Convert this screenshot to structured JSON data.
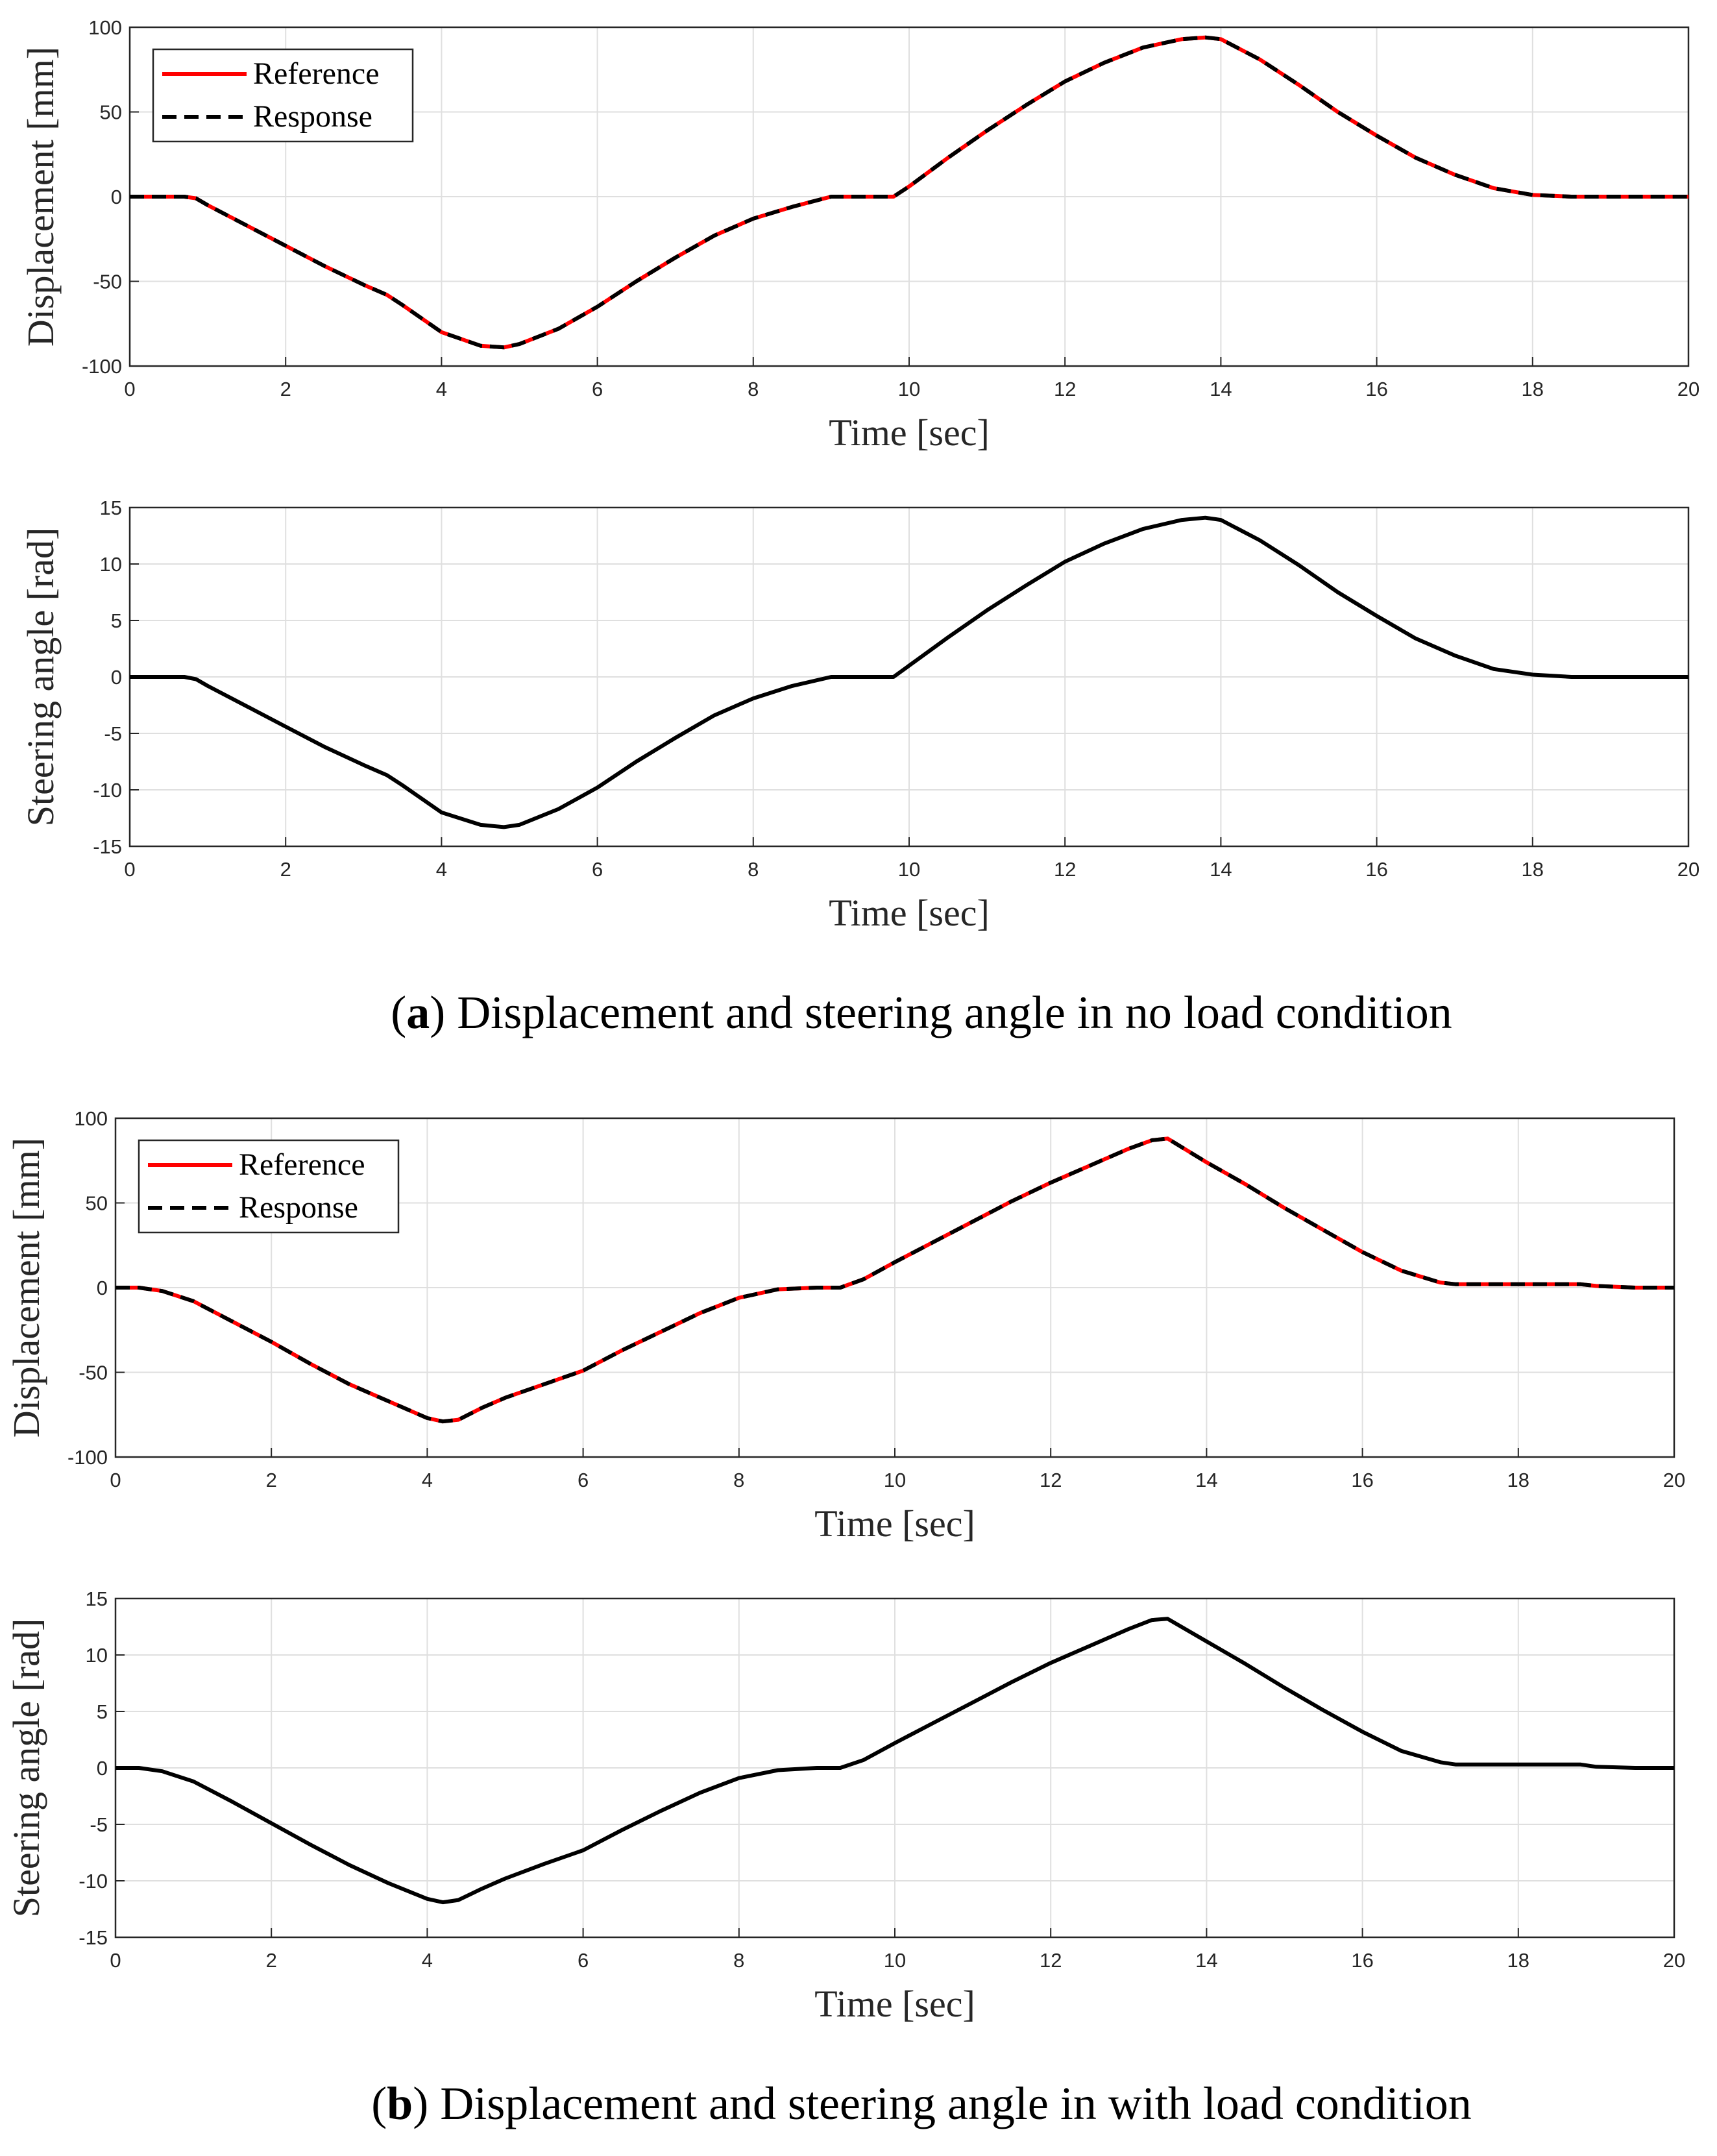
{
  "chart_data": [
    {
      "type": "line",
      "panel": "a",
      "ylabel": "Displacement [mm]",
      "xlabel": "Time [sec]",
      "xlim": [
        0,
        20
      ],
      "ylim": [
        -100,
        100
      ],
      "xticks": [
        0,
        2,
        4,
        6,
        8,
        10,
        12,
        14,
        16,
        18,
        20
      ],
      "yticks": [
        -100,
        -50,
        0,
        50,
        100
      ],
      "grid": true,
      "legend": "top-left",
      "series": [
        {
          "name": "Reference",
          "color": "#ff0000",
          "style": "solid",
          "x": [
            0,
            0.7,
            0.85,
            1,
            1.5,
            2,
            2.5,
            3,
            3.3,
            3.5,
            4,
            4.5,
            4.8,
            5,
            5.5,
            6,
            6.5,
            7,
            7.5,
            8,
            8.5,
            9,
            9.1,
            9.5,
            9.8,
            10,
            10.5,
            11,
            11.5,
            12,
            12.5,
            13,
            13.5,
            13.8,
            14,
            14.5,
            15,
            15.5,
            16,
            16.5,
            17,
            17.5,
            18,
            18.5,
            19,
            19.5,
            20
          ],
          "y": [
            0,
            0,
            -1,
            -5,
            -17,
            -29,
            -41,
            -52,
            -58,
            -64,
            -80,
            -88,
            -89,
            -87,
            -78,
            -65,
            -50,
            -36,
            -23,
            -13,
            -6,
            0,
            0,
            0,
            0,
            6,
            23,
            39,
            54,
            68,
            79,
            88,
            93,
            94,
            93,
            81,
            66,
            50,
            36,
            23,
            13,
            5,
            1,
            0,
            0,
            0,
            0
          ]
        },
        {
          "name": "Response",
          "color": "#000000",
          "style": "dashed",
          "x": [
            0,
            0.7,
            0.85,
            1,
            1.5,
            2,
            2.5,
            3,
            3.3,
            3.5,
            4,
            4.5,
            4.8,
            5,
            5.5,
            6,
            6.5,
            7,
            7.5,
            8,
            8.5,
            9,
            9.1,
            9.5,
            9.8,
            10,
            10.5,
            11,
            11.5,
            12,
            12.5,
            13,
            13.5,
            13.8,
            14,
            14.5,
            15,
            15.5,
            16,
            16.5,
            17,
            17.5,
            18,
            18.5,
            19,
            19.5,
            20
          ],
          "y": [
            0,
            0,
            -1,
            -5,
            -17,
            -29,
            -41,
            -52,
            -58,
            -64,
            -80,
            -88,
            -89,
            -87,
            -78,
            -65,
            -50,
            -36,
            -23,
            -13,
            -6,
            0,
            0,
            0,
            0,
            6,
            23,
            39,
            54,
            68,
            79,
            88,
            93,
            94,
            93,
            81,
            66,
            50,
            36,
            23,
            13,
            5,
            1,
            0,
            0,
            0,
            0
          ]
        }
      ]
    },
    {
      "type": "line",
      "panel": "a",
      "ylabel": "Steering angle [rad]",
      "xlabel": "Time [sec]",
      "xlim": [
        0,
        20
      ],
      "ylim": [
        -15,
        15
      ],
      "xticks": [
        0,
        2,
        4,
        6,
        8,
        10,
        12,
        14,
        16,
        18,
        20
      ],
      "yticks": [
        -15,
        -10,
        -5,
        0,
        5,
        10,
        15
      ],
      "grid": true,
      "series": [
        {
          "name": "Steering angle",
          "color": "#000000",
          "style": "solid",
          "x": [
            0,
            0.7,
            0.85,
            1,
            1.5,
            2,
            2.5,
            3,
            3.3,
            3.5,
            4,
            4.5,
            4.8,
            5,
            5.5,
            6,
            6.5,
            7,
            7.5,
            8,
            8.5,
            9,
            9.1,
            9.5,
            9.8,
            10,
            10.5,
            11,
            11.5,
            12,
            12.5,
            13,
            13.5,
            13.8,
            14,
            14.5,
            15,
            15.5,
            16,
            16.5,
            17,
            17.5,
            18,
            18.5,
            19,
            19.5,
            20
          ],
          "y": [
            0,
            0,
            -0.2,
            -0.8,
            -2.6,
            -4.4,
            -6.2,
            -7.8,
            -8.7,
            -9.6,
            -12,
            -13.1,
            -13.3,
            -13.1,
            -11.7,
            -9.8,
            -7.5,
            -5.4,
            -3.4,
            -1.9,
            -0.8,
            0,
            0,
            0,
            0,
            1,
            3.5,
            5.9,
            8.1,
            10.2,
            11.8,
            13.1,
            13.9,
            14.1,
            13.9,
            12.1,
            9.9,
            7.5,
            5.4,
            3.4,
            1.9,
            0.7,
            0.2,
            0,
            0,
            0,
            0
          ]
        }
      ]
    },
    {
      "type": "line",
      "panel": "b",
      "ylabel": "Displacement [mm]",
      "xlabel": "Time [sec]",
      "xlim": [
        0,
        20
      ],
      "ylim": [
        -100,
        100
      ],
      "xticks": [
        0,
        2,
        4,
        6,
        8,
        10,
        12,
        14,
        16,
        18,
        20
      ],
      "yticks": [
        -100,
        -50,
        0,
        50,
        100
      ],
      "grid": true,
      "legend": "top-left",
      "series": [
        {
          "name": "Reference",
          "color": "#ff0000",
          "style": "solid",
          "x": [
            0,
            0.3,
            0.6,
            1,
            1.5,
            2,
            2.5,
            3,
            3.5,
            4,
            4.2,
            4.4,
            4.7,
            5,
            5.5,
            6,
            6.5,
            7,
            7.5,
            8,
            8.5,
            9,
            9.3,
            9.6,
            10,
            10.5,
            11,
            11.5,
            12,
            12.5,
            13,
            13.3,
            13.5,
            14,
            14.5,
            15,
            15.5,
            16,
            16.5,
            17,
            17.2,
            17.5,
            18,
            18.5,
            18.8,
            19,
            19.5,
            20
          ],
          "y": [
            0,
            0,
            -2,
            -8,
            -20,
            -32,
            -45,
            -57,
            -67,
            -77,
            -79,
            -78,
            -71,
            -65,
            -57,
            -49,
            -37,
            -26,
            -15,
            -6,
            -1,
            0,
            0,
            5,
            15,
            27,
            39,
            51,
            62,
            72,
            82,
            87,
            88,
            74,
            61,
            47,
            34,
            21,
            10,
            3,
            2,
            2,
            2,
            2,
            2,
            1,
            0,
            0
          ]
        },
        {
          "name": "Response",
          "color": "#000000",
          "style": "dashed",
          "x": [
            0,
            0.3,
            0.6,
            1,
            1.5,
            2,
            2.5,
            3,
            3.5,
            4,
            4.2,
            4.4,
            4.7,
            5,
            5.5,
            6,
            6.5,
            7,
            7.5,
            8,
            8.5,
            9,
            9.3,
            9.6,
            10,
            10.5,
            11,
            11.5,
            12,
            12.5,
            13,
            13.3,
            13.5,
            14,
            14.5,
            15,
            15.5,
            16,
            16.5,
            17,
            17.2,
            17.5,
            18,
            18.5,
            18.8,
            19,
            19.5,
            20
          ],
          "y": [
            0,
            0,
            -2,
            -8,
            -20,
            -32,
            -45,
            -57,
            -67,
            -77,
            -79,
            -78,
            -71,
            -65,
            -57,
            -49,
            -37,
            -26,
            -15,
            -6,
            -1,
            0,
            0,
            5,
            15,
            27,
            39,
            51,
            62,
            72,
            82,
            87,
            88,
            74,
            61,
            47,
            34,
            21,
            10,
            3,
            2,
            2,
            2,
            2,
            2,
            1,
            0,
            0
          ]
        }
      ]
    },
    {
      "type": "line",
      "panel": "b",
      "ylabel": "Steering angle [rad]",
      "xlabel": "Time [sec]",
      "xlim": [
        0,
        20
      ],
      "ylim": [
        -15,
        15
      ],
      "xticks": [
        0,
        2,
        4,
        6,
        8,
        10,
        12,
        14,
        16,
        18,
        20
      ],
      "yticks": [
        -15,
        -10,
        -5,
        0,
        5,
        10,
        15
      ],
      "grid": true,
      "series": [
        {
          "name": "Steering angle",
          "color": "#000000",
          "style": "solid",
          "x": [
            0,
            0.3,
            0.6,
            1,
            1.5,
            2,
            2.5,
            3,
            3.5,
            4,
            4.2,
            4.4,
            4.7,
            5,
            5.5,
            6,
            6.5,
            7,
            7.5,
            8,
            8.5,
            9,
            9.3,
            9.6,
            10,
            10.5,
            11,
            11.5,
            12,
            12.5,
            13,
            13.3,
            13.5,
            14,
            14.5,
            15,
            15.5,
            16,
            16.5,
            17,
            17.2,
            17.5,
            18,
            18.5,
            18.8,
            19,
            19.5,
            20
          ],
          "y": [
            0,
            0,
            -0.3,
            -1.2,
            -3,
            -4.9,
            -6.8,
            -8.6,
            -10.2,
            -11.6,
            -11.9,
            -11.7,
            -10.7,
            -9.8,
            -8.5,
            -7.3,
            -5.5,
            -3.8,
            -2.2,
            -0.9,
            -0.2,
            0,
            0,
            0.7,
            2.2,
            4,
            5.8,
            7.6,
            9.3,
            10.8,
            12.3,
            13.1,
            13.2,
            11.2,
            9.2,
            7.1,
            5.1,
            3.2,
            1.5,
            0.5,
            0.3,
            0.3,
            0.3,
            0.3,
            0.3,
            0.1,
            0,
            0
          ]
        }
      ]
    }
  ],
  "captions": [
    {
      "label": "a",
      "text": " Displacement and steering angle in no load condition"
    },
    {
      "label": "b",
      "text": " Displacement and steering angle in with load condition"
    }
  ]
}
